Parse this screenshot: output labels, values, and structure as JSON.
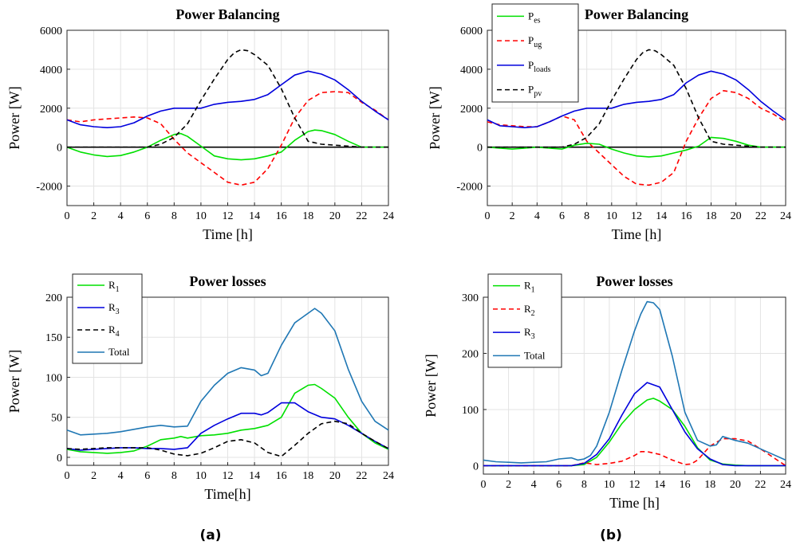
{
  "chart_data": [
    {
      "id": "a_top",
      "type": "line",
      "title": "Power Balancing",
      "xlabel": "Time [h]",
      "ylabel": "Power [W]",
      "xlim": [
        0,
        24
      ],
      "ylim": [
        -3000,
        6000
      ],
      "xticks": [
        0,
        2,
        4,
        6,
        8,
        10,
        12,
        14,
        16,
        18,
        20,
        22,
        24
      ],
      "yticks": [
        -2000,
        0,
        2000,
        4000,
        6000
      ],
      "grid": true,
      "legend": "none",
      "zero_line": true,
      "series": [
        {
          "color": "#00e000",
          "dash": "solid",
          "x": [
            0,
            1,
            2,
            3,
            4,
            5,
            6,
            7,
            8,
            8.5,
            9,
            10,
            11,
            12,
            13,
            14,
            15,
            16,
            17,
            18,
            18.5,
            19,
            20,
            21,
            22,
            23,
            24
          ],
          "y": [
            0,
            -250,
            -400,
            -480,
            -430,
            -250,
            0,
            350,
            650,
            700,
            550,
            50,
            -450,
            -600,
            -650,
            -600,
            -450,
            -250,
            350,
            800,
            880,
            850,
            650,
            300,
            0,
            0,
            0
          ]
        },
        {
          "color": "#ff0000",
          "dash": "dash",
          "x": [
            0,
            1,
            2,
            3,
            4,
            5,
            6,
            7,
            8,
            9,
            10,
            11,
            12,
            13,
            14,
            15,
            16,
            17,
            18,
            19,
            20,
            21,
            22,
            23,
            24
          ],
          "y": [
            1400,
            1300,
            1400,
            1450,
            1500,
            1550,
            1500,
            1200,
            400,
            -300,
            -800,
            -1300,
            -1800,
            -1950,
            -1800,
            -1100,
            100,
            1500,
            2400,
            2800,
            2850,
            2800,
            2300,
            1900,
            1400
          ]
        },
        {
          "color": "#0000dd",
          "dash": "solid",
          "x": [
            0,
            1,
            2,
            3,
            4,
            5,
            6,
            7,
            8,
            9,
            10,
            11,
            12,
            13,
            14,
            15,
            16,
            17,
            18,
            19,
            20,
            21,
            22,
            23,
            24
          ],
          "y": [
            1400,
            1150,
            1050,
            1000,
            1050,
            1250,
            1600,
            1850,
            2000,
            2000,
            2000,
            2200,
            2300,
            2350,
            2450,
            2700,
            3200,
            3700,
            3900,
            3750,
            3450,
            2950,
            2350,
            1850,
            1400
          ]
        },
        {
          "color": "#000000",
          "dash": "dash",
          "x": [
            0,
            5,
            6,
            7,
            8,
            9,
            10,
            11,
            12,
            12.5,
            13,
            13.5,
            14,
            15,
            16,
            17,
            18,
            19,
            20,
            21,
            22,
            24
          ],
          "y": [
            0,
            0,
            0,
            150,
            500,
            1200,
            2400,
            3500,
            4500,
            4850,
            5000,
            4950,
            4750,
            4200,
            3000,
            1500,
            300,
            150,
            100,
            50,
            0,
            0
          ]
        }
      ]
    },
    {
      "id": "b_top",
      "type": "line",
      "title": "Power Balancing",
      "xlabel": "Time [h]",
      "ylabel": "Power [W]",
      "xlim": [
        0,
        24
      ],
      "ylim": [
        -3000,
        6000
      ],
      "xticks": [
        0,
        2,
        4,
        6,
        8,
        10,
        12,
        14,
        16,
        18,
        20,
        22,
        24
      ],
      "yticks": [
        -2000,
        0,
        2000,
        4000,
        6000
      ],
      "grid": true,
      "legend": "top-left",
      "zero_line": true,
      "series": [
        {
          "name": "P",
          "sub": "es",
          "color": "#00e000",
          "dash": "solid",
          "x": [
            0,
            1,
            2,
            3,
            4,
            5,
            6,
            7,
            8,
            9,
            10,
            11,
            12,
            13,
            14,
            15,
            16,
            17,
            18,
            19,
            20,
            21,
            22,
            23,
            24
          ],
          "y": [
            0,
            -50,
            -100,
            -50,
            0,
            -50,
            -100,
            100,
            200,
            150,
            -100,
            -300,
            -450,
            -500,
            -450,
            -300,
            -150,
            50,
            500,
            450,
            300,
            100,
            0,
            0,
            0
          ]
        },
        {
          "name": "P",
          "sub": "ug",
          "color": "#ff0000",
          "dash": "dash",
          "x": [
            0,
            1,
            2,
            3,
            4,
            5,
            6,
            7,
            8,
            9,
            10,
            11,
            12,
            13,
            14,
            15,
            16,
            17,
            18,
            19,
            20,
            21,
            22,
            23,
            24
          ],
          "y": [
            1300,
            1150,
            1100,
            1050,
            1050,
            1300,
            1600,
            1400,
            300,
            -300,
            -900,
            -1500,
            -1900,
            -1950,
            -1800,
            -1300,
            300,
            1500,
            2500,
            2900,
            2800,
            2500,
            2000,
            1700,
            1300
          ]
        },
        {
          "name": "P",
          "sub": "loads",
          "color": "#0000dd",
          "dash": "solid",
          "x": [
            0,
            1,
            2,
            3,
            4,
            5,
            6,
            7,
            8,
            9,
            10,
            11,
            12,
            13,
            14,
            15,
            16,
            17,
            18,
            19,
            20,
            21,
            22,
            23,
            24
          ],
          "y": [
            1400,
            1100,
            1050,
            1000,
            1050,
            1300,
            1600,
            1850,
            2000,
            2000,
            2000,
            2200,
            2300,
            2350,
            2450,
            2700,
            3300,
            3700,
            3900,
            3750,
            3450,
            2950,
            2350,
            1850,
            1400
          ]
        },
        {
          "name": "P",
          "sub": "pv",
          "color": "#000000",
          "dash": "dash",
          "x": [
            0,
            5,
            6,
            7,
            8,
            9,
            10,
            11,
            12,
            12.5,
            13,
            13.5,
            14,
            15,
            16,
            17,
            18,
            19,
            20,
            21,
            22,
            24
          ],
          "y": [
            0,
            0,
            0,
            150,
            500,
            1200,
            2400,
            3500,
            4500,
            4850,
            5000,
            4950,
            4750,
            4200,
            3000,
            1500,
            300,
            150,
            100,
            50,
            0,
            0
          ]
        }
      ]
    },
    {
      "id": "a_bottom",
      "type": "line",
      "title": "Power losses",
      "xlabel": "Time[h]",
      "ylabel": "Power [W]",
      "xlim": [
        0,
        24
      ],
      "ylim": [
        -10,
        200
      ],
      "xticks": [
        0,
        2,
        4,
        6,
        8,
        10,
        12,
        14,
        16,
        18,
        20,
        22,
        24
      ],
      "yticks": [
        0,
        50,
        100,
        150,
        200
      ],
      "grid": true,
      "legend": "top-left",
      "series": [
        {
          "name": "R",
          "sub": "1",
          "color": "#00e000",
          "dash": "solid",
          "x": [
            0,
            1,
            2,
            3,
            4,
            5,
            6,
            7,
            8,
            8.5,
            9,
            10,
            11,
            12,
            13,
            14,
            15,
            16,
            17,
            18,
            18.5,
            19,
            20,
            21,
            22,
            23,
            24
          ],
          "y": [
            10,
            7,
            6,
            5,
            6,
            8,
            14,
            22,
            24,
            26,
            24,
            27,
            28,
            30,
            34,
            36,
            40,
            50,
            80,
            90,
            91,
            86,
            74,
            50,
            30,
            18,
            10
          ]
        },
        {
          "name": "R",
          "sub": "3",
          "color": "#0000dd",
          "dash": "solid",
          "x": [
            0,
            1,
            2,
            3,
            4,
            5,
            6,
            7,
            8,
            9,
            10,
            11,
            12,
            13,
            14,
            14.5,
            15,
            16,
            17,
            18,
            19,
            20,
            21,
            22,
            23,
            24
          ],
          "y": [
            11,
            9,
            10,
            11,
            12,
            12,
            11,
            11,
            10,
            12,
            30,
            40,
            48,
            55,
            55,
            53,
            56,
            68,
            68,
            57,
            50,
            48,
            40,
            30,
            20,
            11
          ]
        },
        {
          "name": "R",
          "sub": "4",
          "color": "#000000",
          "dash": "dash",
          "x": [
            0,
            1,
            2,
            3,
            4,
            5,
            6,
            7,
            8,
            9,
            10,
            11,
            12,
            13,
            14,
            15,
            16,
            17,
            18,
            19,
            20,
            21,
            22,
            23,
            24
          ],
          "y": [
            11,
            10,
            11,
            12,
            12,
            12,
            12,
            9,
            4,
            2,
            5,
            12,
            20,
            22,
            18,
            6,
            1,
            15,
            30,
            42,
            45,
            42,
            30,
            20,
            11
          ]
        },
        {
          "name": "Total",
          "color": "#1f77b4",
          "dash": "solid",
          "x": [
            0,
            1,
            2,
            3,
            4,
            5,
            6,
            7,
            8,
            9,
            10,
            11,
            12,
            13,
            14,
            14.5,
            15,
            16,
            17,
            18,
            18.5,
            19,
            20,
            21,
            22,
            23,
            24
          ],
          "y": [
            34,
            28,
            29,
            30,
            32,
            35,
            38,
            40,
            38,
            39,
            70,
            90,
            105,
            112,
            109,
            102,
            105,
            140,
            168,
            180,
            186,
            180,
            158,
            110,
            70,
            45,
            34
          ]
        }
      ]
    },
    {
      "id": "b_bottom",
      "type": "line",
      "title": "Power losses",
      "xlabel": "Time [h]",
      "ylabel": "Power [W]",
      "xlim": [
        0,
        24
      ],
      "ylim": [
        -15,
        300
      ],
      "xticks": [
        0,
        2,
        4,
        6,
        8,
        10,
        12,
        14,
        16,
        18,
        20,
        22,
        24
      ],
      "yticks": [
        0,
        100,
        200,
        300
      ],
      "grid": true,
      "legend": "top-left",
      "series": [
        {
          "name": "R",
          "sub": "1",
          "color": "#00e000",
          "dash": "solid",
          "x": [
            0,
            1,
            2,
            3,
            4,
            5,
            6,
            7,
            8,
            9,
            10,
            11,
            12,
            13,
            13.5,
            14,
            15,
            16,
            17,
            18,
            19,
            20,
            21,
            22,
            23,
            24
          ],
          "y": [
            0,
            0,
            0,
            0,
            0,
            0,
            0,
            0,
            2,
            15,
            42,
            75,
            100,
            117,
            120,
            115,
            100,
            70,
            32,
            10,
            3,
            1,
            0,
            0,
            0,
            0
          ]
        },
        {
          "name": "R",
          "sub": "2",
          "color": "#ff0000",
          "dash": "dash",
          "x": [
            0,
            7,
            8,
            9,
            10,
            11,
            12,
            12.5,
            13,
            14,
            15,
            16,
            16.5,
            17,
            18,
            19,
            20,
            21,
            22,
            23,
            24
          ],
          "y": [
            0,
            0,
            5,
            2,
            4,
            8,
            18,
            25,
            25,
            20,
            10,
            2,
            3,
            10,
            35,
            48,
            48,
            44,
            30,
            15,
            0
          ]
        },
        {
          "name": "R",
          "sub": "3",
          "color": "#0000dd",
          "dash": "solid",
          "x": [
            0,
            1,
            2,
            3,
            4,
            5,
            6,
            7,
            8,
            9,
            10,
            11,
            12,
            13,
            14,
            15,
            16,
            17,
            18,
            19,
            20,
            21,
            22,
            23,
            24
          ],
          "y": [
            0,
            0,
            0,
            0,
            0,
            0,
            0,
            0,
            4,
            20,
            48,
            90,
            128,
            148,
            140,
            100,
            60,
            30,
            12,
            2,
            0,
            0,
            0,
            0,
            0
          ]
        },
        {
          "name": "Total",
          "color": "#1f77b4",
          "dash": "solid",
          "x": [
            0,
            1,
            2,
            3,
            4,
            5,
            6,
            7,
            7.5,
            8,
            8.5,
            9,
            10,
            11,
            12,
            12.5,
            13,
            13.5,
            14,
            15,
            16,
            17,
            18,
            18.5,
            19,
            20,
            21,
            22,
            23,
            24
          ],
          "y": [
            10,
            7,
            6,
            5,
            6,
            7,
            12,
            14,
            10,
            12,
            18,
            35,
            95,
            170,
            240,
            270,
            292,
            290,
            278,
            195,
            95,
            45,
            35,
            37,
            52,
            45,
            40,
            30,
            20,
            10
          ]
        }
      ]
    }
  ],
  "figure": {
    "sublabels": [
      "(a)",
      "(b)"
    ]
  }
}
